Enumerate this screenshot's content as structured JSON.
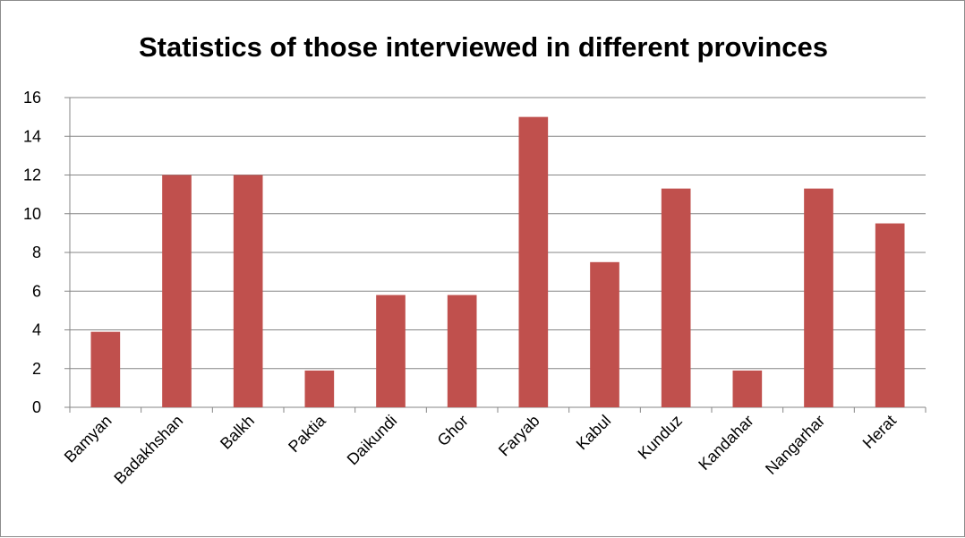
{
  "chart_data": {
    "type": "bar",
    "title": "Statistics of those interviewed in different provinces",
    "xlabel": "",
    "ylabel": "",
    "categories": [
      "Bamyan",
      "Badakhshan",
      "Balkh",
      "Paktia",
      "Daikundi",
      "Ghor",
      "Faryab",
      "Kabul",
      "Kunduz",
      "Kandahar",
      "Nangarhar",
      "Herat"
    ],
    "values": [
      3.9,
      12,
      12,
      1.9,
      5.8,
      5.8,
      15,
      7.5,
      11.3,
      1.9,
      11.3,
      9.5
    ],
    "ylim": [
      0,
      16
    ],
    "yticks": [
      0,
      2,
      4,
      6,
      8,
      10,
      12,
      14,
      16
    ],
    "grid": true,
    "legend": "none",
    "colors": {
      "bar": "#c0504d",
      "grid": "#868686",
      "axis": "#868686"
    }
  }
}
